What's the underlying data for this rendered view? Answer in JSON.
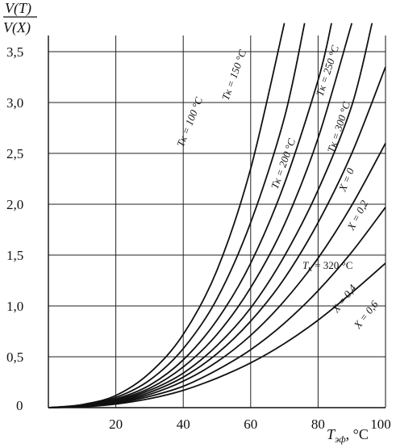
{
  "chart_data": {
    "type": "line",
    "title": "",
    "ylabel_num": "V(T)",
    "ylabel_den": "V(X)",
    "xlabel_main": "T",
    "xlabel_sub": "эф",
    "xlabel_unit": ", °C",
    "xlim": [
      0,
      100
    ],
    "ylim": [
      0,
      3.5
    ],
    "x_ticks": [
      20,
      40,
      60,
      80,
      100
    ],
    "x_tick_labels": [
      "20",
      "40",
      "60",
      "80",
      "100"
    ],
    "x_origin_label": "0",
    "y_ticks": [
      0.5,
      1.0,
      1.5,
      2.0,
      2.5,
      3.0,
      3.5
    ],
    "y_tick_labels": [
      "0,5",
      "1,0",
      "1,5",
      "2,0",
      "2,5",
      "3,0",
      "3,5"
    ],
    "grid": true,
    "series": [
      {
        "name": "T_к = 100 °C",
        "label": "Tк = 100 °C",
        "points": [
          [
            0,
            0
          ],
          [
            10,
            0.03
          ],
          [
            20,
            0.12
          ],
          [
            30,
            0.34
          ],
          [
            40,
            0.72
          ],
          [
            50,
            1.35
          ],
          [
            60,
            2.35
          ],
          [
            70,
            3.78
          ]
        ]
      },
      {
        "name": "T_к = 150 °C",
        "label": "Tк = 150 °C",
        "points": [
          [
            0,
            0
          ],
          [
            10,
            0.025
          ],
          [
            20,
            0.1
          ],
          [
            30,
            0.27
          ],
          [
            40,
            0.58
          ],
          [
            50,
            1.07
          ],
          [
            60,
            1.82
          ],
          [
            70,
            2.85
          ],
          [
            76,
            3.78
          ]
        ]
      },
      {
        "name": "T_к = 200 °C",
        "label": "Tк = 200 °C",
        "points": [
          [
            0,
            0
          ],
          [
            10,
            0.02
          ],
          [
            20,
            0.085
          ],
          [
            30,
            0.22
          ],
          [
            40,
            0.47
          ],
          [
            50,
            0.86
          ],
          [
            60,
            1.42
          ],
          [
            70,
            2.2
          ],
          [
            80,
            3.22
          ],
          [
            84,
            3.78
          ]
        ]
      },
      {
        "name": "T_к = 250 °C",
        "label": "Tк = 250 °C",
        "points": [
          [
            0,
            0
          ],
          [
            10,
            0.018
          ],
          [
            20,
            0.075
          ],
          [
            30,
            0.19
          ],
          [
            40,
            0.4
          ],
          [
            50,
            0.72
          ],
          [
            60,
            1.18
          ],
          [
            70,
            1.8
          ],
          [
            80,
            2.65
          ],
          [
            90,
            3.78
          ]
        ]
      },
      {
        "name": "T_к = 300 °C",
        "label": "Tк = 300 °C",
        "points": [
          [
            0,
            0
          ],
          [
            10,
            0.015
          ],
          [
            20,
            0.065
          ],
          [
            30,
            0.17
          ],
          [
            40,
            0.34
          ],
          [
            50,
            0.61
          ],
          [
            60,
            0.98
          ],
          [
            70,
            1.49
          ],
          [
            80,
            2.14
          ],
          [
            90,
            2.97
          ],
          [
            96,
            3.78
          ]
        ]
      },
      {
        "name": "X = 0",
        "label": "X = 0",
        "points": [
          [
            0,
            0
          ],
          [
            10,
            0.013
          ],
          [
            20,
            0.058
          ],
          [
            30,
            0.15
          ],
          [
            40,
            0.3
          ],
          [
            50,
            0.53
          ],
          [
            60,
            0.85
          ],
          [
            70,
            1.27
          ],
          [
            80,
            1.82
          ],
          [
            90,
            2.5
          ],
          [
            100,
            3.35
          ]
        ]
      },
      {
        "name": "X = 0,2",
        "label": "X = 0,2",
        "points": [
          [
            0,
            0
          ],
          [
            10,
            0.012
          ],
          [
            20,
            0.05
          ],
          [
            30,
            0.13
          ],
          [
            40,
            0.26
          ],
          [
            50,
            0.45
          ],
          [
            60,
            0.71
          ],
          [
            70,
            1.05
          ],
          [
            80,
            1.47
          ],
          [
            90,
            1.99
          ],
          [
            100,
            2.6
          ]
        ]
      },
      {
        "name": "X = 0,4",
        "label": "X = 0,4",
        "points": [
          [
            0,
            0
          ],
          [
            10,
            0.01
          ],
          [
            20,
            0.043
          ],
          [
            30,
            0.11
          ],
          [
            40,
            0.21
          ],
          [
            50,
            0.37
          ],
          [
            60,
            0.57
          ],
          [
            70,
            0.83
          ],
          [
            80,
            1.15
          ],
          [
            90,
            1.53
          ],
          [
            100,
            1.97
          ]
        ]
      },
      {
        "name": "X = 0,6",
        "label": "X = 0,6",
        "points": [
          [
            0,
            0
          ],
          [
            10,
            0.008
          ],
          [
            20,
            0.035
          ],
          [
            30,
            0.088
          ],
          [
            40,
            0.17
          ],
          [
            50,
            0.29
          ],
          [
            60,
            0.44
          ],
          [
            70,
            0.63
          ],
          [
            80,
            0.86
          ],
          [
            90,
            1.13
          ],
          [
            100,
            1.42
          ]
        ]
      }
    ],
    "annotations": [
      {
        "text": "T",
        "sub": "к",
        "rest": " = 320 °C"
      }
    ]
  }
}
